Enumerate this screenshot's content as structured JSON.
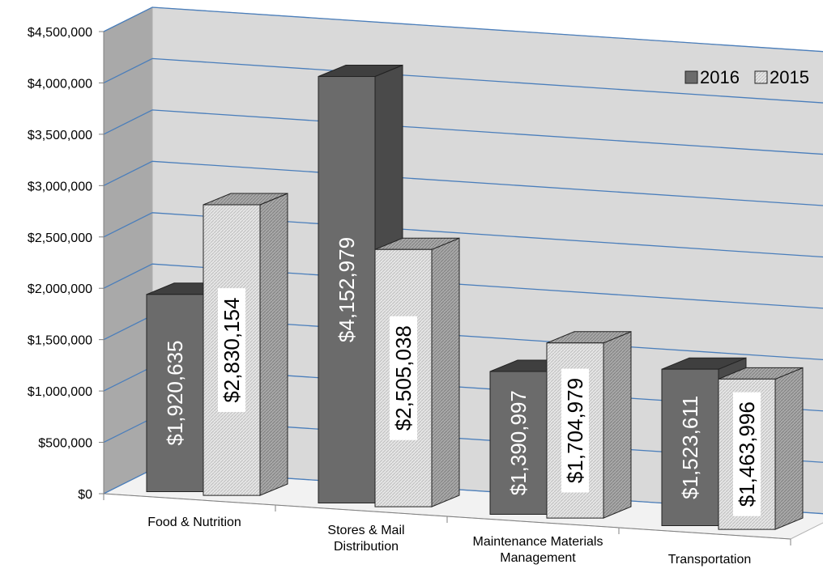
{
  "chart_data": {
    "type": "bar",
    "title": "",
    "xlabel": "",
    "ylabel": "",
    "categories": [
      "Food & Nutrition",
      "Stores & Mail Distribution",
      "Maintenance Materials Management",
      "Transportation"
    ],
    "category_lines": [
      [
        "Food & Nutrition"
      ],
      [
        "Stores & Mail",
        "Distribution"
      ],
      [
        "Maintenance Materials",
        "Management"
      ],
      [
        "Transportation"
      ]
    ],
    "series": [
      {
        "name": "2016",
        "values": [
          1920635,
          4152979,
          1390997,
          1523611
        ],
        "labels": [
          "$1,920,635",
          "$4,152,979",
          "$1,390,997",
          "$1,523,611"
        ],
        "color": "#6b6b6b"
      },
      {
        "name": "2015",
        "values": [
          2830154,
          2505038,
          1704979,
          1463996
        ],
        "labels": [
          "$2,830,154",
          "$2,505,038",
          "$1,704,979",
          "$1,463,996"
        ],
        "color": "#dcdcdc"
      }
    ],
    "ylim": [
      0,
      4500000
    ],
    "yticks": [
      0,
      500000,
      1000000,
      1500000,
      2000000,
      2500000,
      3000000,
      3500000,
      4000000,
      4500000
    ],
    "ytick_labels": [
      "$0",
      "$500,000",
      "$1,000,000",
      "$1,500,000",
      "$2,000,000",
      "$2,500,000",
      "$3,000,000",
      "$3,500,000",
      "$4,000,000",
      "$4,500,000"
    ],
    "grid": true,
    "legend_position": "top-right",
    "style": "3d-clustered-column"
  }
}
